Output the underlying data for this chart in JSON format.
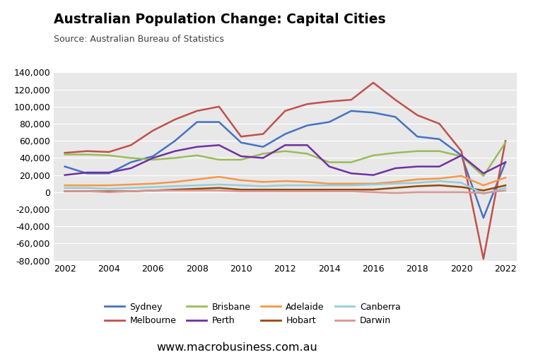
{
  "title": "Australian Population Change: Capital Cities",
  "source": "Source: Australian Bureau of Statistics",
  "website": "www.macrobusiness.com.au",
  "years": [
    2002,
    2003,
    2004,
    2005,
    2006,
    2007,
    2008,
    2009,
    2010,
    2011,
    2012,
    2013,
    2014,
    2015,
    2016,
    2017,
    2018,
    2019,
    2020,
    2021,
    2022
  ],
  "series": {
    "Sydney": [
      30000,
      22000,
      22000,
      35000,
      42000,
      60000,
      82000,
      82000,
      58000,
      53000,
      68000,
      78000,
      82000,
      95000,
      93000,
      88000,
      65000,
      62000,
      43000,
      -30000,
      35000
    ],
    "Melbourne": [
      46000,
      48000,
      47000,
      55000,
      72000,
      85000,
      95000,
      100000,
      65000,
      68000,
      95000,
      103000,
      106000,
      108000,
      128000,
      108000,
      90000,
      80000,
      48000,
      -78000,
      60000
    ],
    "Brisbane": [
      44000,
      44000,
      43000,
      40000,
      38000,
      40000,
      43000,
      38000,
      38000,
      45000,
      48000,
      45000,
      35000,
      35000,
      43000,
      46000,
      48000,
      48000,
      42000,
      19000,
      58000
    ],
    "Perth": [
      20000,
      23000,
      23000,
      28000,
      40000,
      48000,
      53000,
      55000,
      42000,
      40000,
      55000,
      55000,
      30000,
      22000,
      20000,
      28000,
      30000,
      30000,
      43000,
      22000,
      35000
    ],
    "Adelaide": [
      8000,
      8000,
      8000,
      9000,
      10000,
      12000,
      15000,
      18000,
      14000,
      12000,
      13000,
      12000,
      10000,
      10000,
      10000,
      12000,
      15000,
      16000,
      19000,
      8000,
      17000
    ],
    "Hobart": [
      1000,
      1000,
      1000,
      1000,
      2000,
      3000,
      4000,
      5000,
      3000,
      3000,
      3000,
      3000,
      3000,
      3000,
      3000,
      5000,
      7000,
      8000,
      6000,
      2000,
      8000
    ],
    "Canberra": [
      5000,
      5000,
      4000,
      5000,
      6000,
      7000,
      8000,
      9000,
      8000,
      7000,
      8000,
      8000,
      8000,
      8000,
      9000,
      10000,
      11000,
      13000,
      11000,
      -2000,
      5000
    ],
    "Darwin": [
      1000,
      1000,
      0,
      1000,
      2000,
      2000,
      2000,
      2000,
      1000,
      1000,
      1000,
      1000,
      1000,
      1000,
      0,
      -1000,
      0,
      0,
      0,
      -1000,
      2000
    ]
  },
  "colors": {
    "Sydney": "#4472C4",
    "Melbourne": "#C0504D",
    "Brisbane": "#9BBB59",
    "Perth": "#7030A0",
    "Adelaide": "#F79646",
    "Hobart": "#974706",
    "Canberra": "#92CDDC",
    "Darwin": "#D99694"
  },
  "ylim": [
    -80000,
    140000
  ],
  "ytick_step": 20000,
  "plot_bg": "#E8E8E8",
  "fig_bg": "#FFFFFF",
  "logo_color": "#C0152A"
}
